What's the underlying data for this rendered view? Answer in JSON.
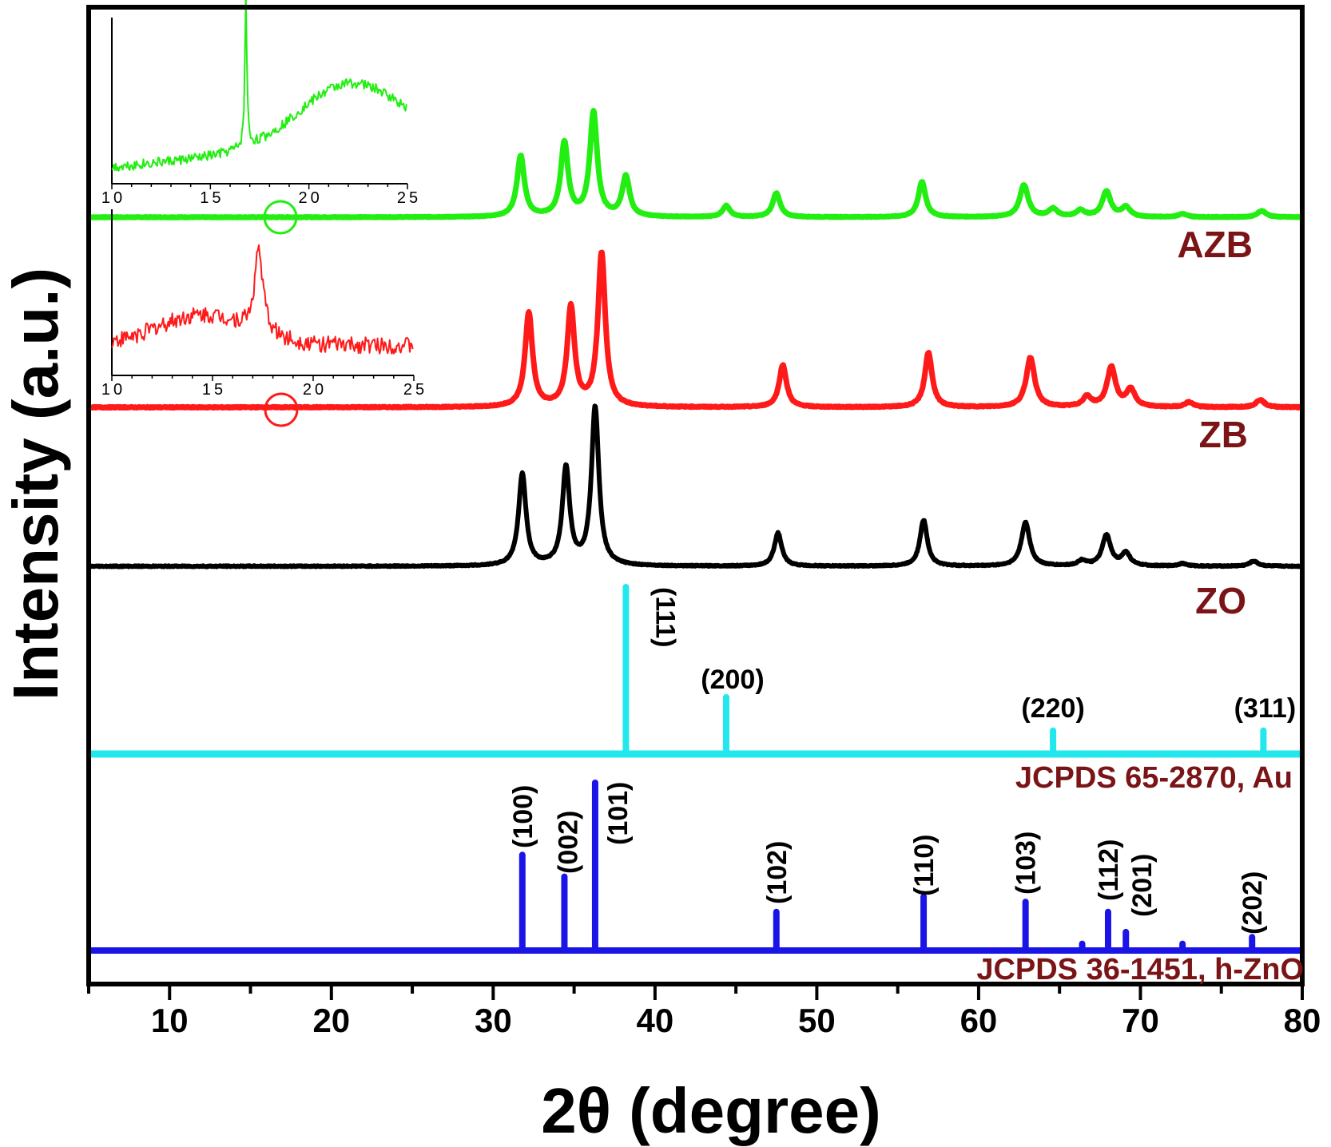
{
  "chart_data": {
    "type": "line",
    "xlabel": "2θ (degree)",
    "ylabel": "Intensity (a.u.)",
    "xlim": [
      5,
      80
    ],
    "x_ticks": [
      10,
      20,
      30,
      40,
      50,
      60,
      70,
      80
    ],
    "grid": false,
    "colors": {
      "AZB": "#22ee11",
      "ZB": "#ff1a1a",
      "ZO": "#000000",
      "Au_ref": "#22e8ee",
      "ZnO_ref": "#1a14e6",
      "label": "#7a1416"
    },
    "series": [
      {
        "name": "AZB",
        "peaks": [
          {
            "x": 31.7,
            "height": 0.38
          },
          {
            "x": 34.4,
            "height": 0.46
          },
          {
            "x": 36.2,
            "height": 0.65
          },
          {
            "x": 38.2,
            "height": 0.25
          },
          {
            "x": 44.4,
            "height": 0.07
          },
          {
            "x": 47.5,
            "height": 0.15
          },
          {
            "x": 56.5,
            "height": 0.22
          },
          {
            "x": 62.8,
            "height": 0.2
          },
          {
            "x": 64.6,
            "height": 0.05
          },
          {
            "x": 66.3,
            "height": 0.04
          },
          {
            "x": 67.9,
            "height": 0.16
          },
          {
            "x": 69.1,
            "height": 0.06
          },
          {
            "x": 72.6,
            "height": 0.02
          },
          {
            "x": 77.5,
            "height": 0.04
          }
        ]
      },
      {
        "name": "ZB",
        "peaks": [
          {
            "x": 32.2,
            "height": 0.38
          },
          {
            "x": 34.8,
            "height": 0.4
          },
          {
            "x": 36.7,
            "height": 0.62
          },
          {
            "x": 47.9,
            "height": 0.17
          },
          {
            "x": 56.9,
            "height": 0.22
          },
          {
            "x": 63.2,
            "height": 0.2
          },
          {
            "x": 66.7,
            "height": 0.04
          },
          {
            "x": 68.2,
            "height": 0.16
          },
          {
            "x": 69.4,
            "height": 0.07
          },
          {
            "x": 73.0,
            "height": 0.02
          },
          {
            "x": 77.4,
            "height": 0.03
          }
        ]
      },
      {
        "name": "ZO",
        "peaks": [
          {
            "x": 31.8,
            "height": 0.36
          },
          {
            "x": 34.5,
            "height": 0.38
          },
          {
            "x": 36.3,
            "height": 0.62
          },
          {
            "x": 47.6,
            "height": 0.13
          },
          {
            "x": 56.6,
            "height": 0.18
          },
          {
            "x": 62.9,
            "height": 0.17
          },
          {
            "x": 66.4,
            "height": 0.02
          },
          {
            "x": 67.9,
            "height": 0.12
          },
          {
            "x": 69.1,
            "height": 0.05
          },
          {
            "x": 72.6,
            "height": 0.01
          },
          {
            "x": 77.0,
            "height": 0.02
          }
        ]
      },
      {
        "name": "JCPDS 65-2870, Au",
        "sticks": [
          {
            "x": 38.2,
            "height": 1.0,
            "hkl": "(111)"
          },
          {
            "x": 44.4,
            "height": 0.34,
            "hkl": "(200)"
          },
          {
            "x": 64.6,
            "height": 0.14,
            "hkl": "(220)"
          },
          {
            "x": 77.6,
            "height": 0.14,
            "hkl": "(311)"
          }
        ]
      },
      {
        "name": "JCPDS 36-1451, h-ZnO",
        "sticks": [
          {
            "x": 31.8,
            "height": 0.57,
            "hkl": "(100)"
          },
          {
            "x": 34.4,
            "height": 0.44,
            "hkl": "(002)"
          },
          {
            "x": 36.3,
            "height": 1.0,
            "hkl": "(101)"
          },
          {
            "x": 47.5,
            "height": 0.23,
            "hkl": "(102)"
          },
          {
            "x": 56.6,
            "height": 0.32,
            "hkl": "(110)"
          },
          {
            "x": 62.9,
            "height": 0.29,
            "hkl": "(103)"
          },
          {
            "x": 66.4,
            "height": 0.04,
            "hkl": ""
          },
          {
            "x": 68.0,
            "height": 0.23,
            "hkl": "(112)"
          },
          {
            "x": 69.1,
            "height": 0.11,
            "hkl": "(201)"
          },
          {
            "x": 72.6,
            "height": 0.04,
            "hkl": ""
          },
          {
            "x": 76.9,
            "height": 0.08,
            "hkl": "(202)"
          }
        ]
      }
    ],
    "insets": [
      {
        "name": "AZB inset",
        "x_ticks": [
          "10",
          "15",
          "20",
          "25"
        ],
        "xlim": [
          10,
          25
        ],
        "peak_x": 16.8,
        "broad_hump_center": 22
      },
      {
        "name": "ZB inset",
        "x_ticks": [
          "10",
          "15",
          "20",
          "25"
        ],
        "xlim": [
          10,
          25
        ],
        "peak_x": 17.3
      }
    ],
    "labels": {
      "AZB": "AZB",
      "ZB": "ZB",
      "ZO": "ZO",
      "au_ref": "JCPDS 65-2870, Au",
      "zno_ref": "JCPDS 36-1451, h-ZnO"
    }
  }
}
